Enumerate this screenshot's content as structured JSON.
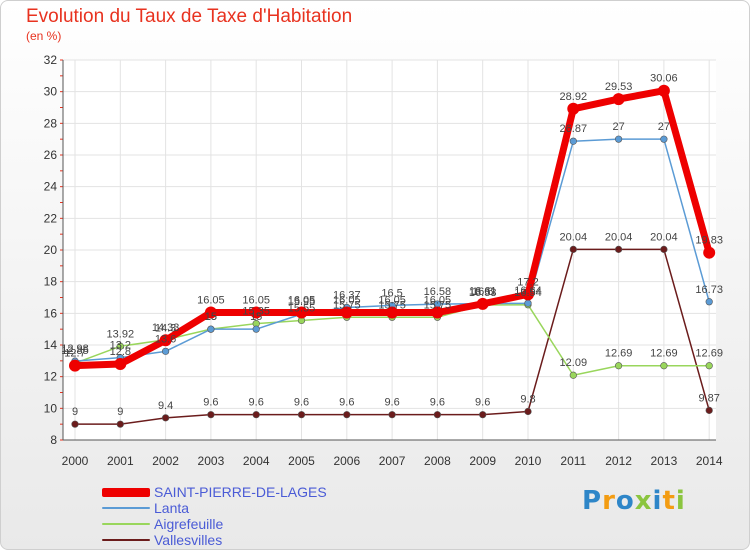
{
  "chart_data": {
    "type": "line",
    "title": "Evolution du Taux de Taxe d'Habitation",
    "subtitle": "(en %)",
    "xlabel": "",
    "ylabel": "",
    "ylim": [
      8,
      32
    ],
    "yticks": [
      8,
      10,
      12,
      14,
      16,
      18,
      20,
      22,
      24,
      26,
      28,
      30,
      32
    ],
    "categories": [
      "2000",
      "2001",
      "2002",
      "2003",
      "2004",
      "2005",
      "2006",
      "2007",
      "2008",
      "2009",
      "2010",
      "2011",
      "2012",
      "2013",
      "2014"
    ],
    "grid": true,
    "series": [
      {
        "name": "Vallesvilles",
        "color": "#6b1c1c",
        "values": [
          9,
          9,
          9.4,
          9.6,
          9.6,
          9.6,
          9.6,
          9.6,
          9.6,
          9.6,
          9.8,
          20.04,
          20.04,
          20.04,
          9.87
        ],
        "labels": [
          "9",
          "9",
          "9.4",
          "9.6",
          "9.6",
          "9.6",
          "9.6",
          "9.6",
          "9.6",
          "9.6",
          "9.8",
          "20.04",
          "20.04",
          "20.04",
          "9.87"
        ]
      },
      {
        "name": "Aigrefeuille",
        "color": "#99d65c",
        "values": [
          12.85,
          13.92,
          14.33,
          15.0,
          15.35,
          15.55,
          15.75,
          15.75,
          15.75,
          16.53,
          16.54,
          12.09,
          12.69,
          12.69,
          12.69
        ],
        "labels": [
          "12.85",
          "13.92",
          "14.33",
          "15",
          "15.35",
          "15.55",
          "15.75",
          "15.75",
          "15.75",
          "16.53",
          "16.54",
          "12.09",
          "12.69",
          "12.69",
          "12.69"
        ]
      },
      {
        "name": "Lanta",
        "color": "#5b9bd5",
        "values": [
          12.98,
          13.2,
          13.6,
          15.0,
          15.0,
          15.95,
          16.37,
          16.5,
          16.58,
          16.61,
          16.64,
          26.87,
          27,
          27,
          16.73
        ],
        "labels": [
          "12.98",
          "13.2",
          "13.6",
          "15",
          "15",
          "15.95",
          "16.37",
          "16.5",
          "16.58",
          "16.61",
          "16.64",
          "26.87",
          "27",
          "27",
          "16.73"
        ]
      },
      {
        "name": "SAINT-PIERRE-DE-LAGES",
        "color": "#ee0000",
        "values": [
          12.7,
          12.8,
          14.3,
          16.05,
          16.05,
          16.05,
          16.05,
          16.05,
          16.05,
          16.6,
          17.2,
          28.92,
          29.53,
          30.06,
          19.83
        ],
        "labels": [
          "12.7",
          "12.8",
          "14.3",
          "16.05",
          "16.05",
          "16.05",
          "16.05",
          "16.05",
          "16.05",
          "16.6",
          "17.2",
          "28.92",
          "29.53",
          "30.06",
          "19.83"
        ]
      }
    ]
  },
  "legend": [
    {
      "name": "SAINT-PIERRE-DE-LAGES",
      "color": "#ee0000"
    },
    {
      "name": "Lanta",
      "color": "#5b9bd5"
    },
    {
      "name": "Aigrefeuille",
      "color": "#99d65c"
    },
    {
      "name": "Vallesvilles",
      "color": "#6b1c1c"
    }
  ],
  "brand": {
    "letters": [
      "P",
      "r",
      "o",
      "x",
      "i",
      "t",
      "i"
    ],
    "colors": [
      "#2e86c8",
      "#f39c12",
      "#2e86c8",
      "#8bc53f",
      "#2e86c8",
      "#f39c12",
      "#8bc53f"
    ]
  }
}
